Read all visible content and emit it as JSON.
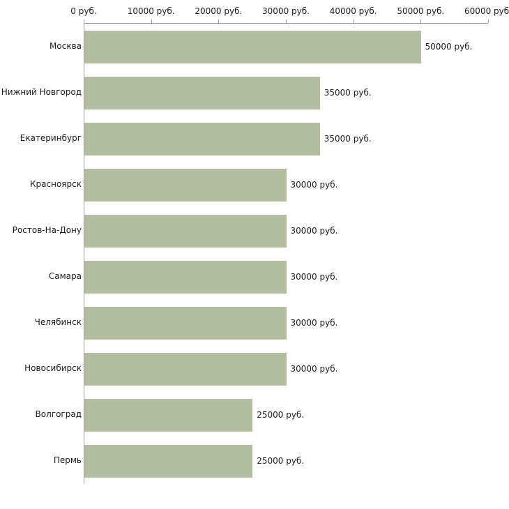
{
  "chart_data": {
    "type": "bar",
    "orientation": "horizontal",
    "title": "",
    "categories": [
      "Москва",
      "Нижний Новгород",
      "Екатеринбург",
      "Красноярск",
      "Ростов-На-Дону",
      "Самара",
      "Челябинск",
      "Новосибирск",
      "Волгоград",
      "Пермь"
    ],
    "values": [
      50000,
      35000,
      35000,
      30000,
      30000,
      30000,
      30000,
      30000,
      25000,
      25000
    ],
    "value_labels": [
      "50000 руб.",
      "35000 руб.",
      "35000 руб.",
      "30000 руб.",
      "30000 руб.",
      "30000 руб.",
      "30000 руб.",
      "30000 руб.",
      "25000 руб.",
      "25000 руб."
    ],
    "x_ticks": [
      0,
      10000,
      20000,
      30000,
      40000,
      50000,
      60000
    ],
    "x_tick_labels": [
      "0 руб.",
      "10000 руб.",
      "20000 руб.",
      "30000 руб.",
      "40000 руб.",
      "50000 руб.",
      "60000 руб."
    ],
    "xlim": [
      0,
      60000
    ],
    "xlabel": "",
    "ylabel": "",
    "grid": false,
    "legend": false,
    "bar_color": "#b3bda0",
    "axis_color": "#999999",
    "text_color": "#1a1a1a"
  }
}
